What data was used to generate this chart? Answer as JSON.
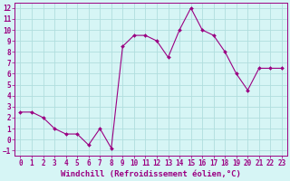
{
  "x": [
    0,
    1,
    2,
    3,
    4,
    5,
    6,
    7,
    8,
    9,
    10,
    11,
    12,
    13,
    14,
    15,
    16,
    17,
    18,
    19,
    20,
    21,
    22,
    23
  ],
  "y": [
    2.5,
    2.5,
    2.0,
    1.0,
    0.5,
    0.5,
    -0.5,
    1.0,
    -0.8,
    8.5,
    9.5,
    9.5,
    9.0,
    7.5,
    10.0,
    12.0,
    10.0,
    9.5,
    8.0,
    6.0,
    4.5,
    6.5,
    6.5,
    6.5
  ],
  "line_color": "#9b0082",
  "marker": "D",
  "marker_size": 2,
  "bg_color": "#d6f5f5",
  "grid_color": "#b0dede",
  "xlabel": "Windchill (Refroidissement éolien,°C)",
  "xlabel_fontsize": 6.5,
  "ylim": [
    -1.5,
    12.5
  ],
  "yticks": [
    -1,
    0,
    1,
    2,
    3,
    4,
    5,
    6,
    7,
    8,
    9,
    10,
    11,
    12
  ],
  "xticks": [
    0,
    1,
    2,
    3,
    4,
    5,
    6,
    7,
    8,
    9,
    10,
    11,
    12,
    13,
    14,
    15,
    16,
    17,
    18,
    19,
    20,
    21,
    22,
    23
  ],
  "tick_fontsize": 5.5,
  "axis_color": "#9b0082"
}
